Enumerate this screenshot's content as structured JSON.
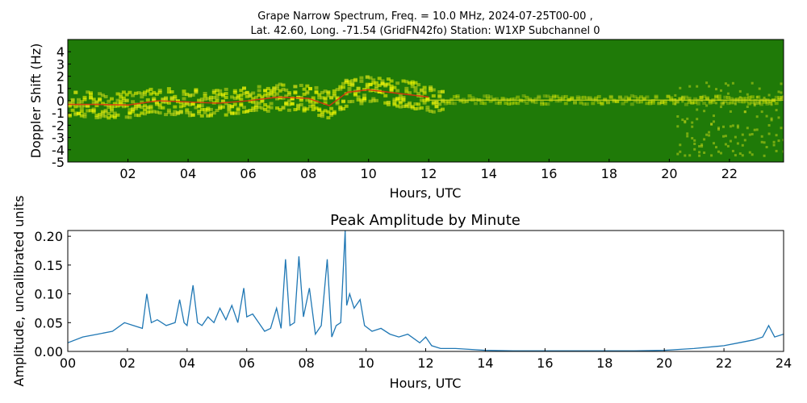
{
  "figure_title": {
    "line1": "Grape Narrow Spectrum, Freq. = 10.0 MHz, 2024-07-25T00-00 ,",
    "line2": "Lat.  42.60, Long. -71.54 (GridFN42fo) Station: W1XP Subchannel 0"
  },
  "colors": {
    "spectrogram_background": "#1f7a08",
    "spectrogram_low": "#0b7a00",
    "spectrogram_mid": "#cddc18",
    "spectrogram_high": "#ffff00",
    "spectrogram_peak": "#e03010",
    "line": "#1f77b4"
  },
  "chart_data": [
    {
      "type": "heatmap",
      "title": "",
      "xlabel": "Hours, UTC",
      "ylabel": "Doppler Shift (Hz)",
      "xlim": [
        0,
        23.8
      ],
      "ylim": [
        -5,
        5
      ],
      "x_ticks": [
        2,
        4,
        6,
        8,
        10,
        12,
        14,
        16,
        18,
        20,
        22
      ],
      "x_tick_labels": [
        "02",
        "04",
        "06",
        "08",
        "10",
        "12",
        "14",
        "16",
        "18",
        "20",
        "22"
      ],
      "y_ticks": [
        4,
        3,
        2,
        1,
        0,
        -1,
        -2,
        -3,
        -4,
        -5
      ],
      "y_tick_labels": [
        "4",
        "3",
        "2",
        "1",
        "0",
        "-1",
        "-2",
        "-3",
        "-4",
        "-5"
      ],
      "peak_doppler_trace": {
        "hours": [
          0,
          1,
          2,
          3,
          4,
          5,
          6,
          7,
          8,
          8.7,
          9.3,
          10,
          11,
          12
        ],
        "doppler_hz": [
          -0.3,
          -0.3,
          -0.35,
          0.0,
          -0.1,
          -0.2,
          0.0,
          0.3,
          0.2,
          -0.4,
          0.7,
          0.9,
          0.6,
          0.3
        ]
      }
    },
    {
      "type": "line",
      "title": "Peak Amplitude by Minute",
      "xlabel": "Hours, UTC",
      "ylabel": "Amplitude, uncalibrated units",
      "xlim": [
        0,
        24
      ],
      "ylim": [
        0,
        0.21
      ],
      "x_ticks": [
        0,
        2,
        4,
        6,
        8,
        10,
        12,
        14,
        16,
        18,
        20,
        22,
        24
      ],
      "x_tick_labels": [
        "00",
        "02",
        "04",
        "06",
        "08",
        "10",
        "12",
        "14",
        "16",
        "18",
        "20",
        "22",
        "24"
      ],
      "y_ticks": [
        0,
        0.05,
        0.1,
        0.15,
        0.2
      ],
      "y_tick_labels": [
        "0.00",
        "0.05",
        "0.10",
        "0.15",
        "0.20"
      ],
      "series": [
        {
          "x": [
            0,
            0.5,
            1,
            1.5,
            1.9,
            2.2,
            2.5,
            2.65,
            2.8,
            3.0,
            3.3,
            3.6,
            3.75,
            3.9,
            4.0,
            4.2,
            4.35,
            4.5,
            4.7,
            4.9,
            5.1,
            5.3,
            5.5,
            5.7,
            5.9,
            6.0,
            6.2,
            6.4,
            6.6,
            6.8,
            7.0,
            7.15,
            7.3,
            7.45,
            7.6,
            7.75,
            7.9,
            8.1,
            8.3,
            8.5,
            8.7,
            8.85,
            9.0,
            9.15,
            9.3,
            9.35,
            9.45,
            9.6,
            9.8,
            9.95,
            10.2,
            10.5,
            10.8,
            11.1,
            11.4,
            11.8,
            12.0,
            12.2,
            12.5,
            13,
            14,
            15,
            16,
            17,
            18,
            19,
            20,
            21,
            22,
            22.5,
            23,
            23.3,
            23.5,
            23.7,
            24
          ],
          "values": [
            0.015,
            0.025,
            0.03,
            0.035,
            0.05,
            0.045,
            0.04,
            0.1,
            0.05,
            0.055,
            0.045,
            0.05,
            0.09,
            0.05,
            0.045,
            0.115,
            0.05,
            0.045,
            0.06,
            0.05,
            0.075,
            0.055,
            0.08,
            0.05,
            0.11,
            0.06,
            0.065,
            0.05,
            0.035,
            0.04,
            0.075,
            0.04,
            0.16,
            0.045,
            0.05,
            0.165,
            0.06,
            0.11,
            0.03,
            0.045,
            0.16,
            0.025,
            0.045,
            0.05,
            0.21,
            0.08,
            0.1,
            0.075,
            0.09,
            0.045,
            0.035,
            0.04,
            0.03,
            0.025,
            0.03,
            0.015,
            0.025,
            0.01,
            0.005,
            0.005,
            0.002,
            0.001,
            0.001,
            0.001,
            0.001,
            0.001,
            0.002,
            0.005,
            0.01,
            0.015,
            0.02,
            0.025,
            0.045,
            0.025,
            0.03
          ]
        }
      ]
    }
  ]
}
